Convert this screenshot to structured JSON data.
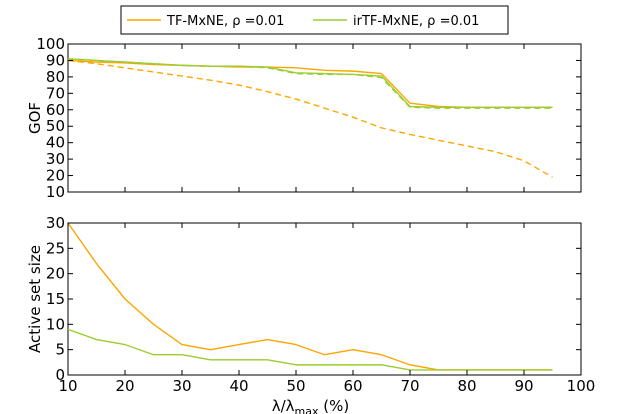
{
  "chart_data": [
    {
      "type": "line",
      "ylabel": "GOF",
      "xlim": [
        10,
        100
      ],
      "ylim": [
        10,
        100
      ],
      "xticks": [
        10,
        20,
        30,
        40,
        50,
        60,
        70,
        80,
        90,
        100
      ],
      "yticks": [
        10,
        20,
        30,
        40,
        50,
        60,
        70,
        80,
        90,
        100
      ],
      "grid": false,
      "legend": {
        "placement": "top-center",
        "entries": [
          {
            "label": "TF-MxNE,  ρ =0.01",
            "color": "#FFA500"
          },
          {
            "label": "irTF-MxNE, ρ =0.01",
            "color": "#9ACD32"
          }
        ]
      },
      "series": [
        {
          "name": "TF-MxNE,  ρ =0.01",
          "color": "#FFA500",
          "style": "solid",
          "x": [
            10,
            15,
            20,
            25,
            30,
            35,
            40,
            45,
            50,
            55,
            60,
            65,
            70,
            75,
            80,
            85,
            90,
            95
          ],
          "y": [
            90,
            89,
            88.5,
            87.5,
            87,
            86.5,
            86,
            86,
            85.5,
            84,
            83.5,
            82,
            64,
            62,
            61.5,
            61.5,
            61.5,
            61.5
          ]
        },
        {
          "name": "TF-MxNE,  ρ =0.01",
          "color": "#FFA500",
          "style": "dashed",
          "x": [
            10,
            15,
            20,
            25,
            30,
            35,
            40,
            45,
            50,
            55,
            60,
            65,
            70,
            75,
            80,
            85,
            90,
            95
          ],
          "y": [
            90,
            88,
            85.5,
            83,
            80.5,
            78,
            75,
            71,
            66.5,
            61,
            55.5,
            49,
            45,
            41.5,
            38,
            34.5,
            29,
            19
          ]
        },
        {
          "name": "irTF-MxNE, ρ =0.01",
          "color": "#9ACD32",
          "style": "solid",
          "x": [
            10,
            15,
            20,
            25,
            30,
            35,
            40,
            45,
            50,
            55,
            60,
            65,
            70,
            75,
            80,
            85,
            90,
            95
          ],
          "y": [
            91,
            90,
            89,
            88,
            87,
            86.5,
            86.5,
            86,
            82.5,
            82,
            81.5,
            80.5,
            62,
            61.5,
            61.5,
            61.5,
            61.5,
            61.5
          ]
        },
        {
          "name": "irTF-MxNE, ρ =0.01",
          "color": "#9ACD32",
          "style": "dashed",
          "x": [
            10,
            15,
            20,
            25,
            30,
            35,
            40,
            45,
            50,
            55,
            60,
            65,
            70,
            75,
            80,
            85,
            90,
            95
          ],
          "y": [
            91,
            90,
            89,
            88,
            87,
            86.5,
            86.5,
            85.5,
            82,
            81.5,
            81.5,
            79.5,
            61.5,
            61,
            61,
            61,
            61,
            61
          ]
        }
      ]
    },
    {
      "type": "line",
      "ylabel": "Active set size",
      "xlabel_main": "λ/λ",
      "xlabel_sub": "max",
      "xlabel_tail": " (%)",
      "xlim": [
        10,
        100
      ],
      "ylim": [
        0,
        30
      ],
      "xticks": [
        10,
        20,
        30,
        40,
        50,
        60,
        70,
        80,
        90,
        100
      ],
      "yticks": [
        0,
        5,
        10,
        15,
        20,
        25,
        30
      ],
      "grid": false,
      "series": [
        {
          "name": "TF-MxNE,  ρ =0.01",
          "color": "#FFA500",
          "style": "solid",
          "x": [
            10,
            15,
            20,
            25,
            30,
            35,
            40,
            45,
            50,
            55,
            60,
            65,
            70,
            75,
            80,
            85,
            90,
            95
          ],
          "y": [
            30,
            22,
            15,
            10,
            6,
            5,
            6,
            7,
            6,
            4,
            5,
            4,
            2,
            1,
            1,
            1,
            1,
            1
          ]
        },
        {
          "name": "irTF-MxNE, ρ =0.01",
          "color": "#9ACD32",
          "style": "solid",
          "x": [
            10,
            15,
            20,
            25,
            30,
            35,
            40,
            45,
            50,
            55,
            60,
            65,
            70,
            75,
            80,
            85,
            90,
            95
          ],
          "y": [
            9,
            7,
            6,
            4,
            4,
            3,
            3,
            3,
            2,
            2,
            2,
            2,
            1,
            1,
            1,
            1,
            1,
            1
          ]
        }
      ]
    }
  ]
}
